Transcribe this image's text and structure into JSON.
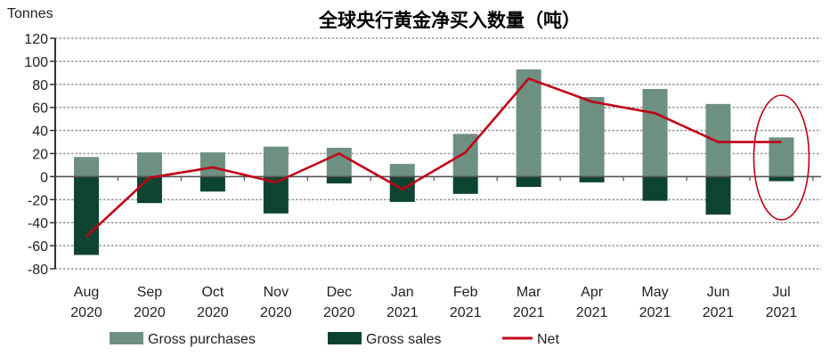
{
  "chart_data": {
    "type": "bar",
    "title": "全球央行黄金净买入数量（吨）",
    "ylabel": "Tonnes",
    "xlabel": "",
    "ylim": [
      -80,
      120
    ],
    "yticks": [
      120,
      100,
      80,
      60,
      40,
      20,
      0,
      -20,
      -40,
      -60,
      -80
    ],
    "grid": true,
    "legend_position": "bottom",
    "categories": [
      [
        "Aug",
        "2020"
      ],
      [
        "Sep",
        "2020"
      ],
      [
        "Oct",
        "2020"
      ],
      [
        "Nov",
        "2020"
      ],
      [
        "Dec",
        "2020"
      ],
      [
        "Jan",
        "2021"
      ],
      [
        "Feb",
        "2021"
      ],
      [
        "Mar",
        "2021"
      ],
      [
        "Apr",
        "2021"
      ],
      [
        "May",
        "2021"
      ],
      [
        "Jun",
        "2021"
      ],
      [
        "Jul",
        "2021"
      ]
    ],
    "series": [
      {
        "name": "Gross purchases",
        "type": "bar",
        "color": "#6e9080",
        "values": [
          17,
          21,
          21,
          26,
          25,
          11,
          37,
          93,
          69,
          76,
          63,
          34
        ]
      },
      {
        "name": "Gross sales",
        "type": "bar",
        "color": "#0d4430",
        "values": [
          -68,
          -23,
          -13,
          -32,
          -6,
          -22,
          -15,
          -9,
          -5,
          -21,
          -33,
          -4
        ]
      },
      {
        "name": "Net",
        "type": "line",
        "color": "#c00018",
        "values": [
          -52,
          -1,
          8,
          -5,
          20,
          -11,
          21,
          85,
          65,
          55,
          30,
          30
        ]
      }
    ],
    "annotations": [
      {
        "type": "ellipse-highlight",
        "category_index": 11,
        "color": "#c00018"
      }
    ]
  }
}
